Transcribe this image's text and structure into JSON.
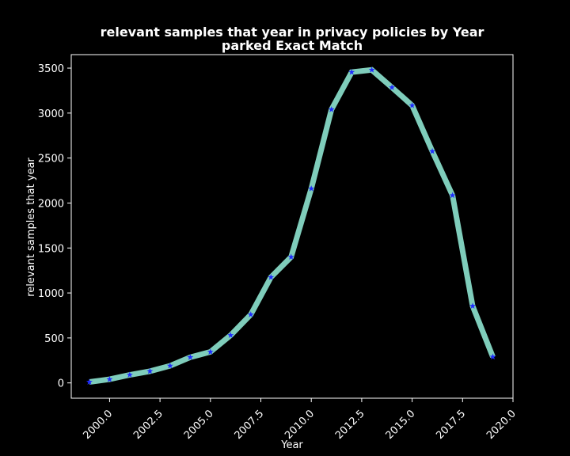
{
  "chart_data": {
    "type": "line",
    "title": "relevant samples that year in privacy policies by Year",
    "subtitle": "parked Exact Match",
    "xlabel": "Year",
    "ylabel": "relevant samples that year",
    "xlim": [
      1998.1,
      2020.0
    ],
    "ylim": [
      -170,
      3650
    ],
    "x_ticks": [
      2000.0,
      2002.5,
      2005.0,
      2007.5,
      2010.0,
      2012.5,
      2015.0,
      2017.5,
      2020.0
    ],
    "x_tick_labels": [
      "2000.0",
      "2002.5",
      "2005.0",
      "2007.5",
      "2010.0",
      "2012.5",
      "2015.0",
      "2017.5",
      "2020.0"
    ],
    "y_ticks": [
      0,
      500,
      1000,
      1500,
      2000,
      2500,
      3000,
      3500
    ],
    "y_tick_labels": [
      "0",
      "500",
      "1000",
      "1500",
      "2000",
      "2500",
      "3000",
      "3500"
    ],
    "grid": false,
    "series": [
      {
        "x": [
          1999,
          2000,
          2001,
          2002,
          2003,
          2004,
          2005,
          2006,
          2007,
          2008,
          2009,
          2010,
          2011,
          2012,
          2013,
          2014,
          2015,
          2016,
          2017,
          2018,
          2019
        ],
        "values": [
          10,
          40,
          90,
          130,
          190,
          285,
          345,
          530,
          760,
          1175,
          1400,
          2160,
          3040,
          3455,
          3480,
          3285,
          3085,
          2575,
          2085,
          855,
          290
        ],
        "line_color": "#7fcdbb",
        "marker_color": "#1f2cff",
        "marker": "star"
      }
    ]
  }
}
